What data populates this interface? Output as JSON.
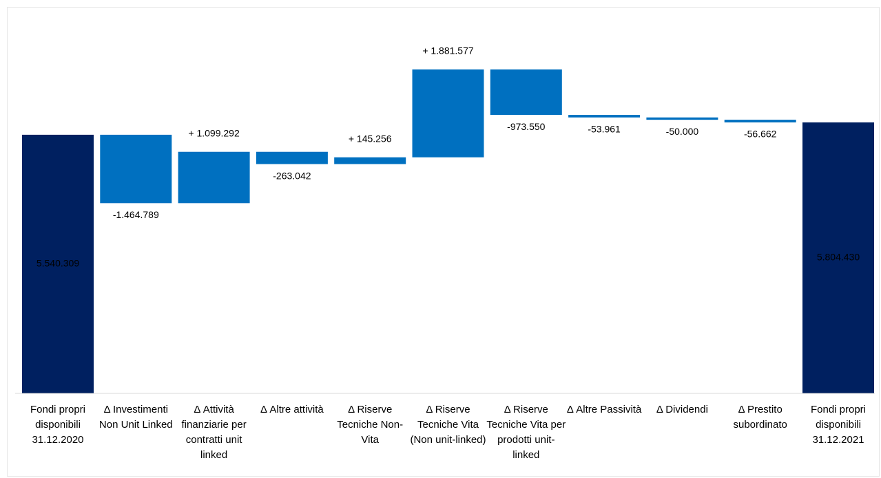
{
  "chart_data": {
    "type": "waterfall",
    "categories": [
      "Fondi propri disponibili 31.12.2020",
      "Δ Investimenti Non Unit Linked",
      "Δ Attività finanziarie per contratti unit linked",
      "Δ Altre attività",
      "Δ Riserve Tecniche Non-Vita",
      "Δ Riserve Tecniche Vita (Non unit-linked)",
      "Δ Riserve Tecniche Vita per prodotti unit-linked",
      "Δ Altre Passività",
      "Δ Dividendi",
      "Δ Prestito subordinato",
      "Fondi propri disponibili 31.12.2021"
    ],
    "values": [
      5540309,
      -1464789,
      1099292,
      -263042,
      145256,
      1881577,
      -973550,
      -53961,
      -50000,
      -56662,
      5804430
    ],
    "value_labels": [
      "5.540.309",
      "-1.464.789",
      "+ 1.099.292",
      "-263.042",
      "+ 145.256",
      "+ 1.881.577",
      "-973.550",
      "-53.961",
      "-50.000",
      "-56.662",
      "5.804.430"
    ],
    "is_total": [
      true,
      false,
      false,
      false,
      false,
      false,
      false,
      false,
      false,
      false,
      true
    ],
    "total_color": "#002060",
    "delta_color": "#0070c0"
  }
}
